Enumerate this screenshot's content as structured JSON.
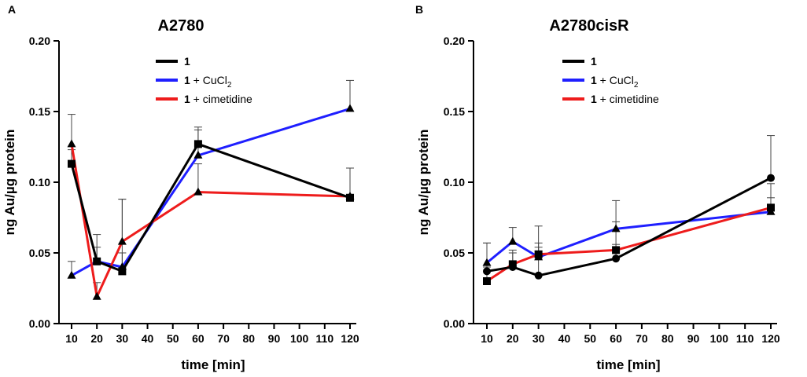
{
  "chart_data": [
    {
      "type": "line",
      "panel_label": "A",
      "title": "A2780",
      "xlabel": "time [min]",
      "ylabel": "ng Au/µg protein",
      "x": [
        10,
        20,
        30,
        60,
        120
      ],
      "x_ticks": [
        10,
        20,
        30,
        40,
        50,
        60,
        70,
        80,
        90,
        100,
        110,
        120
      ],
      "xlim": [
        10,
        120
      ],
      "y_ticks": [
        "0.00",
        "0.05",
        "0.10",
        "0.15",
        "0.20"
      ],
      "ylim": [
        0,
        0.2
      ],
      "legend": [
        {
          "bold": "1",
          "rest": "",
          "sub": "",
          "color": "#000000"
        },
        {
          "bold": "1",
          "rest": " + CuCl",
          "sub": "2",
          "color": "#1f1fff"
        },
        {
          "bold": "1",
          "rest": " + cimetidine",
          "sub": "",
          "color": "#ee1c1c"
        }
      ],
      "series": [
        {
          "name": "1 + CuCl2",
          "color": "#1f1fff",
          "marker": "triangle",
          "values": [
            0.034,
            0.044,
            0.04,
            0.119,
            0.152
          ],
          "errors": [
            0.01,
            0.019,
            0.048,
            0.02,
            0.02
          ]
        },
        {
          "name": "1 + cimetidine",
          "color": "#ee1c1c",
          "marker": "triangle",
          "values": [
            0.127,
            0.019,
            0.058,
            0.093,
            0.09
          ],
          "errors": [
            0.021,
            0.01,
            0.03,
            0.02,
            0.02
          ]
        },
        {
          "name": "1",
          "color": "#000000",
          "marker": "square",
          "values": [
            0.113,
            0.044,
            0.037,
            0.127,
            0.089
          ],
          "errors": [
            0.01,
            0.01,
            0.013,
            0.01,
            0.021
          ]
        }
      ]
    },
    {
      "type": "line",
      "panel_label": "B",
      "title": "A2780cisR",
      "xlabel": "time [min]",
      "ylabel": "ng Au/µg protein",
      "x": [
        10,
        20,
        30,
        60,
        120
      ],
      "x_ticks": [
        10,
        20,
        30,
        40,
        50,
        60,
        70,
        80,
        90,
        100,
        110,
        120
      ],
      "xlim": [
        10,
        120
      ],
      "y_ticks": [
        "0.00",
        "0.05",
        "0.10",
        "0.15",
        "0.20"
      ],
      "ylim": [
        0,
        0.2
      ],
      "legend": [
        {
          "bold": "1",
          "rest": "",
          "sub": "",
          "color": "#000000"
        },
        {
          "bold": "1",
          "rest": " + CuCl",
          "sub": "2",
          "color": "#1f1fff"
        },
        {
          "bold": "1",
          "rest": " + cimetidine",
          "sub": "",
          "color": "#ee1c1c"
        }
      ],
      "series": [
        {
          "name": "1 + CuCl2",
          "color": "#1f1fff",
          "marker": "triangle",
          "values": [
            0.043,
            0.058,
            0.047,
            0.067,
            0.079
          ],
          "errors": [
            0.014,
            0.01,
            0.01,
            0.02,
            0.01
          ]
        },
        {
          "name": "1 + cimetidine",
          "color": "#ee1c1c",
          "marker": "square",
          "values": [
            0.03,
            0.042,
            0.049,
            0.052,
            0.082
          ],
          "errors": [
            0.01,
            0.01,
            0.02,
            0.02,
            0.017
          ]
        },
        {
          "name": "1",
          "color": "#000000",
          "marker": "circle",
          "values": [
            0.037,
            0.04,
            0.034,
            0.046,
            0.103
          ],
          "errors": [
            0.02,
            0.01,
            0.02,
            0.01,
            0.03
          ]
        }
      ]
    }
  ]
}
